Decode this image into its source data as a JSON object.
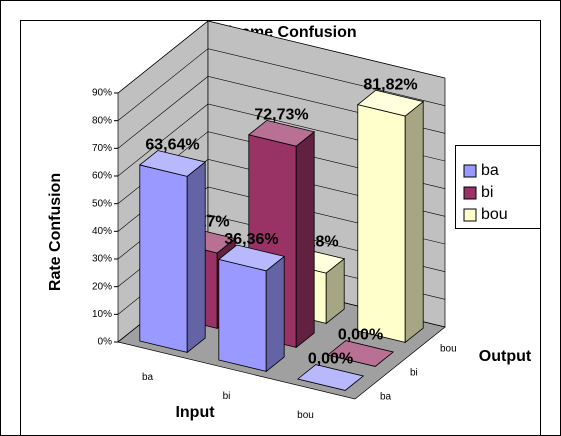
{
  "chart_data": {
    "type": "bar",
    "title": "Viseme Confusion",
    "y_label": "Rate Confusion",
    "x_label": "Input",
    "z_label": "Output",
    "categories": [
      "ba",
      "bi",
      "bou"
    ],
    "series": [
      {
        "name": "ba",
        "color": "#9999ff",
        "values": [
          63.64,
          36.36,
          0
        ],
        "value_labels": [
          "63,64%",
          "36,36%",
          "0,00%"
        ]
      },
      {
        "name": "bi",
        "color": "#993366",
        "values": [
          27.27,
          72.73,
          0
        ],
        "value_labels": [
          "27,27%",
          "72,73%",
          "0,00%"
        ]
      },
      {
        "name": "bou",
        "color": "#ffffcc",
        "values": [
          0,
          18.18,
          81.82
        ],
        "value_labels": [
          "0,00%",
          "18,18%",
          "81,82%"
        ]
      }
    ],
    "ylim": [
      0,
      90
    ],
    "yticks": [
      {
        "value": 0,
        "label": "0%"
      },
      {
        "value": 10,
        "label": "10%"
      },
      {
        "value": 20,
        "label": "20%"
      },
      {
        "value": 30,
        "label": "30%"
      },
      {
        "value": 40,
        "label": "40%"
      },
      {
        "value": 50,
        "label": "50%"
      },
      {
        "value": 60,
        "label": "60%"
      },
      {
        "value": 70,
        "label": "70%"
      },
      {
        "value": 80,
        "label": "80%"
      },
      {
        "value": 90,
        "label": "90%"
      }
    ],
    "grid": true,
    "legend": "right"
  }
}
